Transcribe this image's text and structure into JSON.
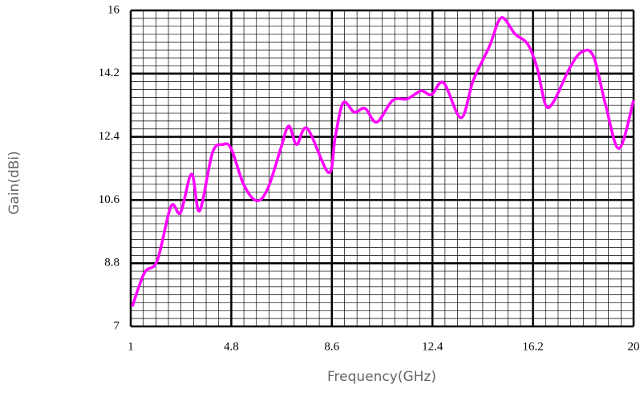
{
  "chart_data": {
    "type": "line",
    "x_label": "Frequency(GHz)",
    "y_label": "Gain(dBi)",
    "xlim": [
      1,
      20
    ],
    "ylim": [
      7,
      16
    ],
    "xticks": [
      1,
      4.8,
      8.6,
      12.4,
      16.2,
      20
    ],
    "yticks": [
      7,
      8.8,
      10.6,
      12.4,
      14.2,
      16
    ],
    "grid": true,
    "series": [
      {
        "color": "#ff00ff",
        "x": [
          1.06,
          1.52,
          2.0,
          2.52,
          2.88,
          3.3,
          3.6,
          4.09,
          4.48,
          4.79,
          5.27,
          5.76,
          6.18,
          6.67,
          6.97,
          7.27,
          7.67,
          8.48,
          8.73,
          9.03,
          9.45,
          9.85,
          10.3,
          10.9,
          11.45,
          11.97,
          12.36,
          12.82,
          13.48,
          13.94,
          14.55,
          15.0,
          15.52,
          16.0,
          16.36,
          16.67,
          16.97,
          17.58,
          18.03,
          18.48,
          18.94,
          19.45,
          20.0
        ],
        "values": [
          7.57,
          8.53,
          8.87,
          10.42,
          10.24,
          11.34,
          10.29,
          11.95,
          12.18,
          12.07,
          11.04,
          10.58,
          10.93,
          12.07,
          12.71,
          12.18,
          12.64,
          11.38,
          12.41,
          13.37,
          13.1,
          13.21,
          12.82,
          13.44,
          13.48,
          13.71,
          13.6,
          13.94,
          12.94,
          14.0,
          14.97,
          15.79,
          15.33,
          15.04,
          14.35,
          13.32,
          13.39,
          14.35,
          14.81,
          14.7,
          13.32,
          12.07,
          13.44
        ]
      }
    ]
  }
}
